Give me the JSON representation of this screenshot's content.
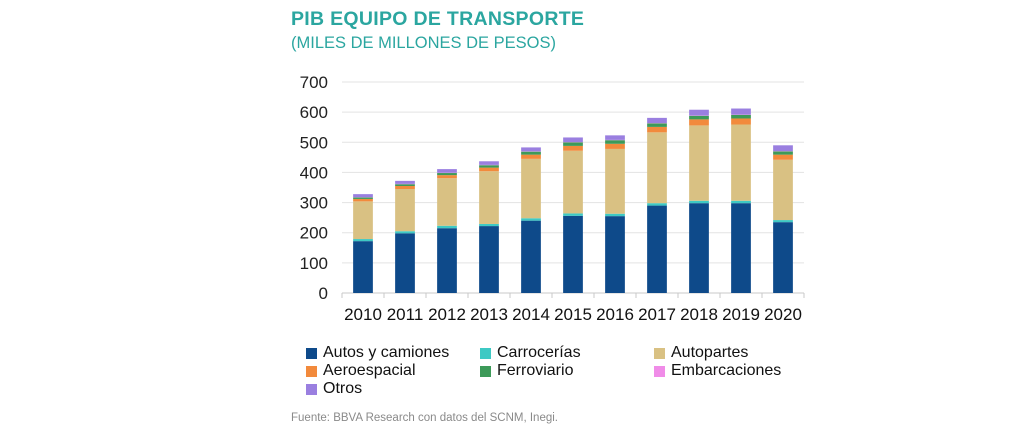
{
  "header": {
    "title": "PIB EQUIPO DE TRANSPORTE",
    "subtitle": "(MILES DE MILLONES DE PESOS)"
  },
  "source": "Fuente: BBVA Research con datos del SCNM, Inegi.",
  "chart_data": {
    "type": "bar",
    "stacked": true,
    "title": "PIB EQUIPO DE TRANSPORTE",
    "subtitle": "(MILES DE MILLONES DE PESOS)",
    "xlabel": "",
    "ylabel": "",
    "ylim": [
      0,
      700
    ],
    "yticks": [
      "0",
      "100",
      "200",
      "300",
      "400",
      "500",
      "600",
      "700"
    ],
    "grid": true,
    "legend_position": "bottom",
    "categories": [
      "2010",
      "2011",
      "2012",
      "2013",
      "2014",
      "2015",
      "2016",
      "2017",
      "2018",
      "2019",
      "2020"
    ],
    "series": [
      {
        "name": "Autos y camiones",
        "color": "#0e4a8a",
        "values": [
          172,
          198,
          215,
          222,
          240,
          256,
          255,
          290,
          298,
          298,
          235
        ]
      },
      {
        "name": "Carrocerías",
        "color": "#3ec9c4",
        "values": [
          7,
          7,
          8,
          7,
          8,
          8,
          8,
          8,
          8,
          8,
          7
        ]
      },
      {
        "name": "Autopartes",
        "color": "#d9c183",
        "values": [
          125,
          140,
          158,
          175,
          197,
          208,
          215,
          235,
          250,
          253,
          200
        ]
      },
      {
        "name": "Aeroespacial",
        "color": "#f28a3c",
        "values": [
          8,
          10,
          10,
          12,
          14,
          16,
          17,
          18,
          20,
          20,
          17
        ]
      },
      {
        "name": "Ferroviario",
        "color": "#3d9a59",
        "values": [
          5,
          6,
          7,
          8,
          10,
          12,
          12,
          12,
          12,
          12,
          11
        ]
      },
      {
        "name": "Embarcaciones",
        "color": "#f08ce8",
        "values": [
          1,
          1,
          1,
          1,
          1,
          1,
          1,
          1,
          1,
          1,
          1
        ]
      },
      {
        "name": "Otros",
        "color": "#9a7fe0",
        "values": [
          10,
          10,
          12,
          12,
          13,
          15,
          15,
          17,
          19,
          20,
          19
        ]
      }
    ]
  }
}
